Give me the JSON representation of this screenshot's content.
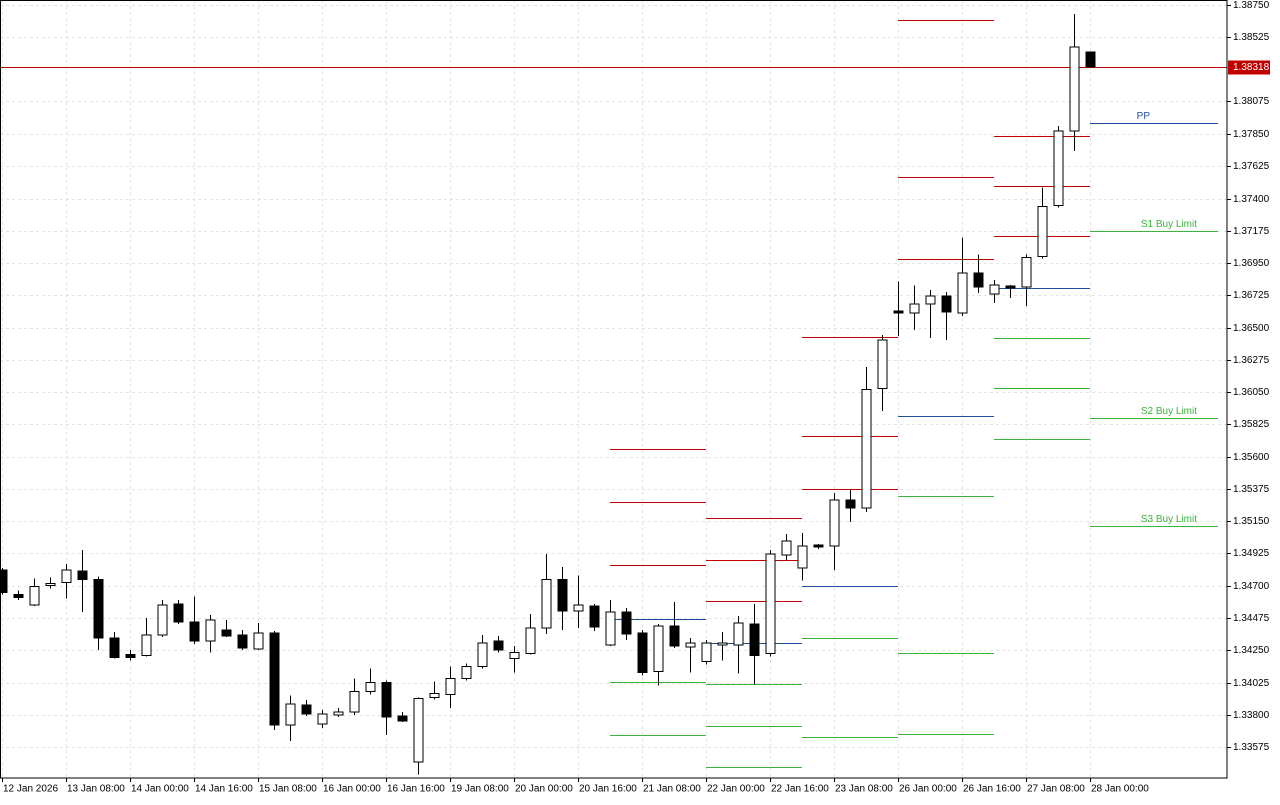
{
  "chart_data": {
    "type": "candlestick",
    "categories": [
      "12 Jan 2026",
      null,
      null,
      null,
      "13 Jan 08:00",
      null,
      null,
      null,
      "14 Jan 00:00",
      null,
      null,
      null,
      "14 Jan 16:00",
      null,
      null,
      null,
      "15 Jan 08:00",
      null,
      null,
      null,
      "16 Jan 00:00",
      null,
      null,
      null,
      "16 Jan 16:00",
      null,
      null,
      null,
      "19 Jan 08:00",
      null,
      null,
      null,
      "20 Jan 00:00",
      null,
      null,
      null,
      "20 Jan 16:00",
      null,
      null,
      null,
      "21 Jan 08:00",
      null,
      null,
      null,
      "22 Jan 00:00",
      null,
      null,
      null,
      "22 Jan 16:00",
      null,
      null,
      null,
      "23 Jan 08:00",
      null,
      null,
      null,
      "26 Jan 00:00",
      null,
      null,
      null,
      "26 Jan 16:00",
      null,
      null,
      null,
      "27 Jan 08:00",
      null,
      null,
      null,
      "28 Jan 00:00"
    ],
    "open": [
      1.34808,
      1.3464,
      1.34565,
      1.34703,
      1.34724,
      1.34801,
      1.34745,
      1.34334,
      1.34222,
      1.34215,
      1.34355,
      1.34572,
      1.34446,
      1.34313,
      1.3439,
      1.34355,
      1.34257,
      1.34369,
      1.33728,
      1.33868,
      1.33735,
      1.33798,
      1.33819,
      1.33963,
      1.34026,
      1.33791,
      1.33469,
      1.33921,
      1.33942,
      1.34054,
      1.34138,
      1.34313,
      1.34194,
      1.34229,
      1.34404,
      1.34745,
      1.34523,
      1.34558,
      1.34285,
      1.34516,
      1.34369,
      1.34103,
      1.34418,
      1.34271,
      1.34173,
      1.34285,
      1.34285,
      1.34432,
      1.34229,
      1.34913,
      1.34822,
      1.34983,
      1.34976,
      1.35298,
      1.35242,
      1.36077,
      1.36616,
      1.36602,
      1.36665,
      1.36721,
      1.36602,
      1.36882,
      1.36735,
      1.36791,
      1.36784,
      1.36996,
      1.37353,
      1.37871,
      1.38421
    ],
    "high": [
      1.34822,
      1.34668,
      1.34752,
      1.34759,
      1.3485,
      1.34948,
      1.34766,
      1.34376,
      1.3425,
      1.34474,
      1.346,
      1.346,
      1.34626,
      1.34495,
      1.3446,
      1.3439,
      1.34439,
      1.34383,
      1.33935,
      1.33903,
      1.33833,
      1.33847,
      1.34054,
      1.34124,
      1.3404,
      1.33819,
      1.33921,
      1.34033,
      1.34138,
      1.34159,
      1.34355,
      1.34348,
      1.34278,
      1.34502,
      1.3492,
      1.34829,
      1.34773,
      1.34572,
      1.346,
      1.34544,
      1.3439,
      1.34432,
      1.34586,
      1.34334,
      1.3432,
      1.34376,
      1.34488,
      1.34572,
      1.34948,
      1.3506,
      1.35067,
      1.3499,
      1.35347,
      1.35368,
      1.36224,
      1.36448,
      1.36821,
      1.36793,
      1.36763,
      1.36749,
      1.37129,
      1.3701,
      1.36833,
      1.36798,
      1.3701,
      1.37479,
      1.37906,
      1.38687,
      1.38421
    ],
    "low": [
      1.3464,
      1.346,
      1.34558,
      1.34682,
      1.34612,
      1.34516,
      1.3425,
      1.34194,
      1.3418,
      1.34208,
      1.34341,
      1.34432,
      1.34292,
      1.34236,
      1.34341,
      1.3425,
      1.3425,
      1.33693,
      1.33616,
      1.33791,
      1.33707,
      1.33784,
      1.33798,
      1.33942,
      1.33658,
      1.33749,
      1.33385,
      1.33907,
      1.33847,
      1.3404,
      1.34124,
      1.34236,
      1.34096,
      1.34222,
      1.34362,
      1.3439,
      1.34404,
      1.34383,
      1.34278,
      1.3432,
      1.34075,
      1.34005,
      1.34264,
      1.34096,
      1.34152,
      1.3418,
      1.34089,
      1.34012,
      1.34208,
      1.34878,
      1.34738,
      1.34955,
      1.34808,
      1.35144,
      1.35214,
      1.3592,
      1.36441,
      1.36483,
      1.36427,
      1.36413,
      1.36581,
      1.36742,
      1.36672,
      1.36707,
      1.36651,
      1.36982,
      1.37339,
      1.37731,
      1.38318
    ],
    "close": [
      1.34654,
      1.34619,
      1.34696,
      1.34717,
      1.34808,
      1.34745,
      1.34334,
      1.34201,
      1.34201,
      1.34355,
      1.34565,
      1.34446,
      1.34313,
      1.3446,
      1.34348,
      1.34264,
      1.34369,
      1.33728,
      1.33875,
      1.33805,
      1.33805,
      1.33819,
      1.33963,
      1.34026,
      1.33784,
      1.33756,
      1.33914,
      1.33949,
      1.34054,
      1.34138,
      1.34299,
      1.3425,
      1.34236,
      1.34404,
      1.34745,
      1.34523,
      1.34565,
      1.34411,
      1.34516,
      1.34362,
      1.34096,
      1.34418,
      1.34278,
      1.34299,
      1.34299,
      1.34299,
      1.34439,
      1.34215,
      1.3492,
      1.35011,
      1.34976,
      1.34969,
      1.35298,
      1.35242,
      1.3607,
      1.36413,
      1.36602,
      1.36665,
      1.36721,
      1.36609,
      1.36882,
      1.36784,
      1.36798,
      1.36777,
      1.36989,
      1.37346,
      1.37871,
      1.38456,
      1.38318
    ],
    "up_color": "#ffffff",
    "down_color": "#000000",
    "ylim": [
      1.33359,
      1.38785
    ],
    "yticks": [
      {
        "value": 1.3875,
        "label": "1.38750"
      },
      1.38525,
      {
        "value": 1.3808,
        "label": "1.38075"
      },
      {
        "value": 1.3785,
        "label": "1.37850"
      },
      1.37625,
      {
        "value": 1.374,
        "label": "1.37400"
      },
      1.37175,
      {
        "value": 1.3695,
        "label": "1.36950"
      },
      1.36725,
      {
        "value": 1.365,
        "label": "1.36500"
      },
      1.36275,
      {
        "value": 1.3605,
        "label": "1.36050"
      },
      1.35825,
      {
        "value": 1.356,
        "label": "1.35600"
      },
      1.35375,
      {
        "value": 1.3515,
        "label": "1.35150"
      },
      1.34925,
      {
        "value": 1.347,
        "label": "1.34700"
      },
      1.34475,
      {
        "value": 1.3425,
        "label": "1.34250"
      },
      1.34025,
      {
        "value": 1.338,
        "label": "1.33800"
      },
      1.33575
    ],
    "grid": true,
    "current_price": 1.38318,
    "current_price_color": "#c00000",
    "level_colors": {
      "resistance": "#c00000",
      "pivot": "#1f4e9c",
      "support": "#3cb43c"
    },
    "pivot_periods": [
      {
        "resistance": [
          1.35654,
          1.35284,
          1.34843
        ],
        "pivot": 1.34467,
        "support": [
          1.34026,
          1.33658
        ]
      },
      {
        "resistance": [
          1.35172,
          1.34878,
          1.34593
        ],
        "pivot": 1.34299,
        "support": [
          1.34012,
          1.33721,
          1.33434
        ]
      },
      {
        "resistance": [
          1.36434,
          1.35745,
          1.35374
        ],
        "pivot": 1.34696,
        "support": [
          1.34334,
          1.33644
        ]
      },
      {
        "resistance": [
          1.38645,
          1.37549,
          1.36982
        ],
        "pivot": 1.35885,
        "support": [
          1.35326,
          1.34229,
          1.33665
        ]
      },
      {
        "resistance": [
          1.37836,
          1.37486,
          1.37136
        ],
        "pivot": 1.36779,
        "support": [
          1.36427,
          1.36077,
          1.35724
        ]
      },
      {
        "resistance": [],
        "pivot": 1.37927,
        "support": [
          1.37171,
          1.35871,
          1.35116
        ],
        "pivot_label": "PP",
        "support_labels": [
          "S1 Buy Limit",
          "S2 Buy Limit",
          "S3 Buy Limit"
        ]
      }
    ]
  }
}
